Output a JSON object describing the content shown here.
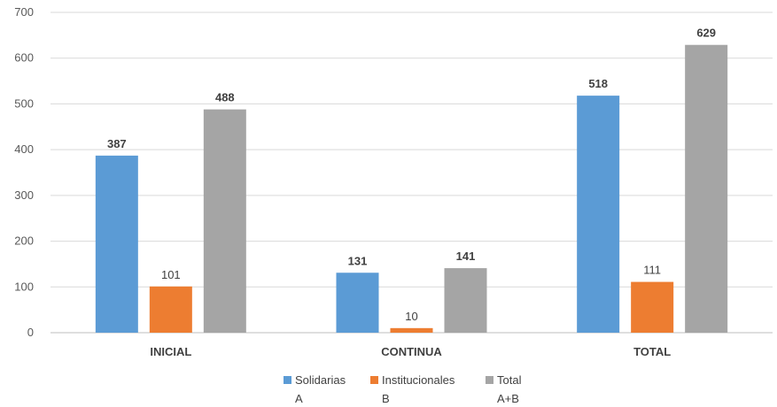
{
  "chart_data": {
    "type": "bar",
    "categories": [
      "INICIAL",
      "CONTINUA",
      "TOTAL"
    ],
    "series": [
      {
        "name": "Solidarias A",
        "legend_lines": [
          "Solidarias",
          "A"
        ],
        "values": [
          387,
          131,
          518
        ],
        "color": "#5B9BD5",
        "label_bold": true
      },
      {
        "name": "Institucionales B",
        "legend_lines": [
          "Institucionales",
          "B"
        ],
        "values": [
          101,
          10,
          111
        ],
        "color": "#ED7D31",
        "label_bold": false
      },
      {
        "name": "Total A+B",
        "legend_lines": [
          "Total",
          "A+B"
        ],
        "values": [
          488,
          141,
          629
        ],
        "color": "#A5A5A5",
        "label_bold": true
      }
    ],
    "ylim": [
      0,
      700
    ],
    "yticks": [
      0,
      100,
      200,
      300,
      400,
      500,
      600,
      700
    ],
    "grid": true,
    "legend_position": "bottom",
    "title": "",
    "xlabel": "",
    "ylabel": ""
  }
}
